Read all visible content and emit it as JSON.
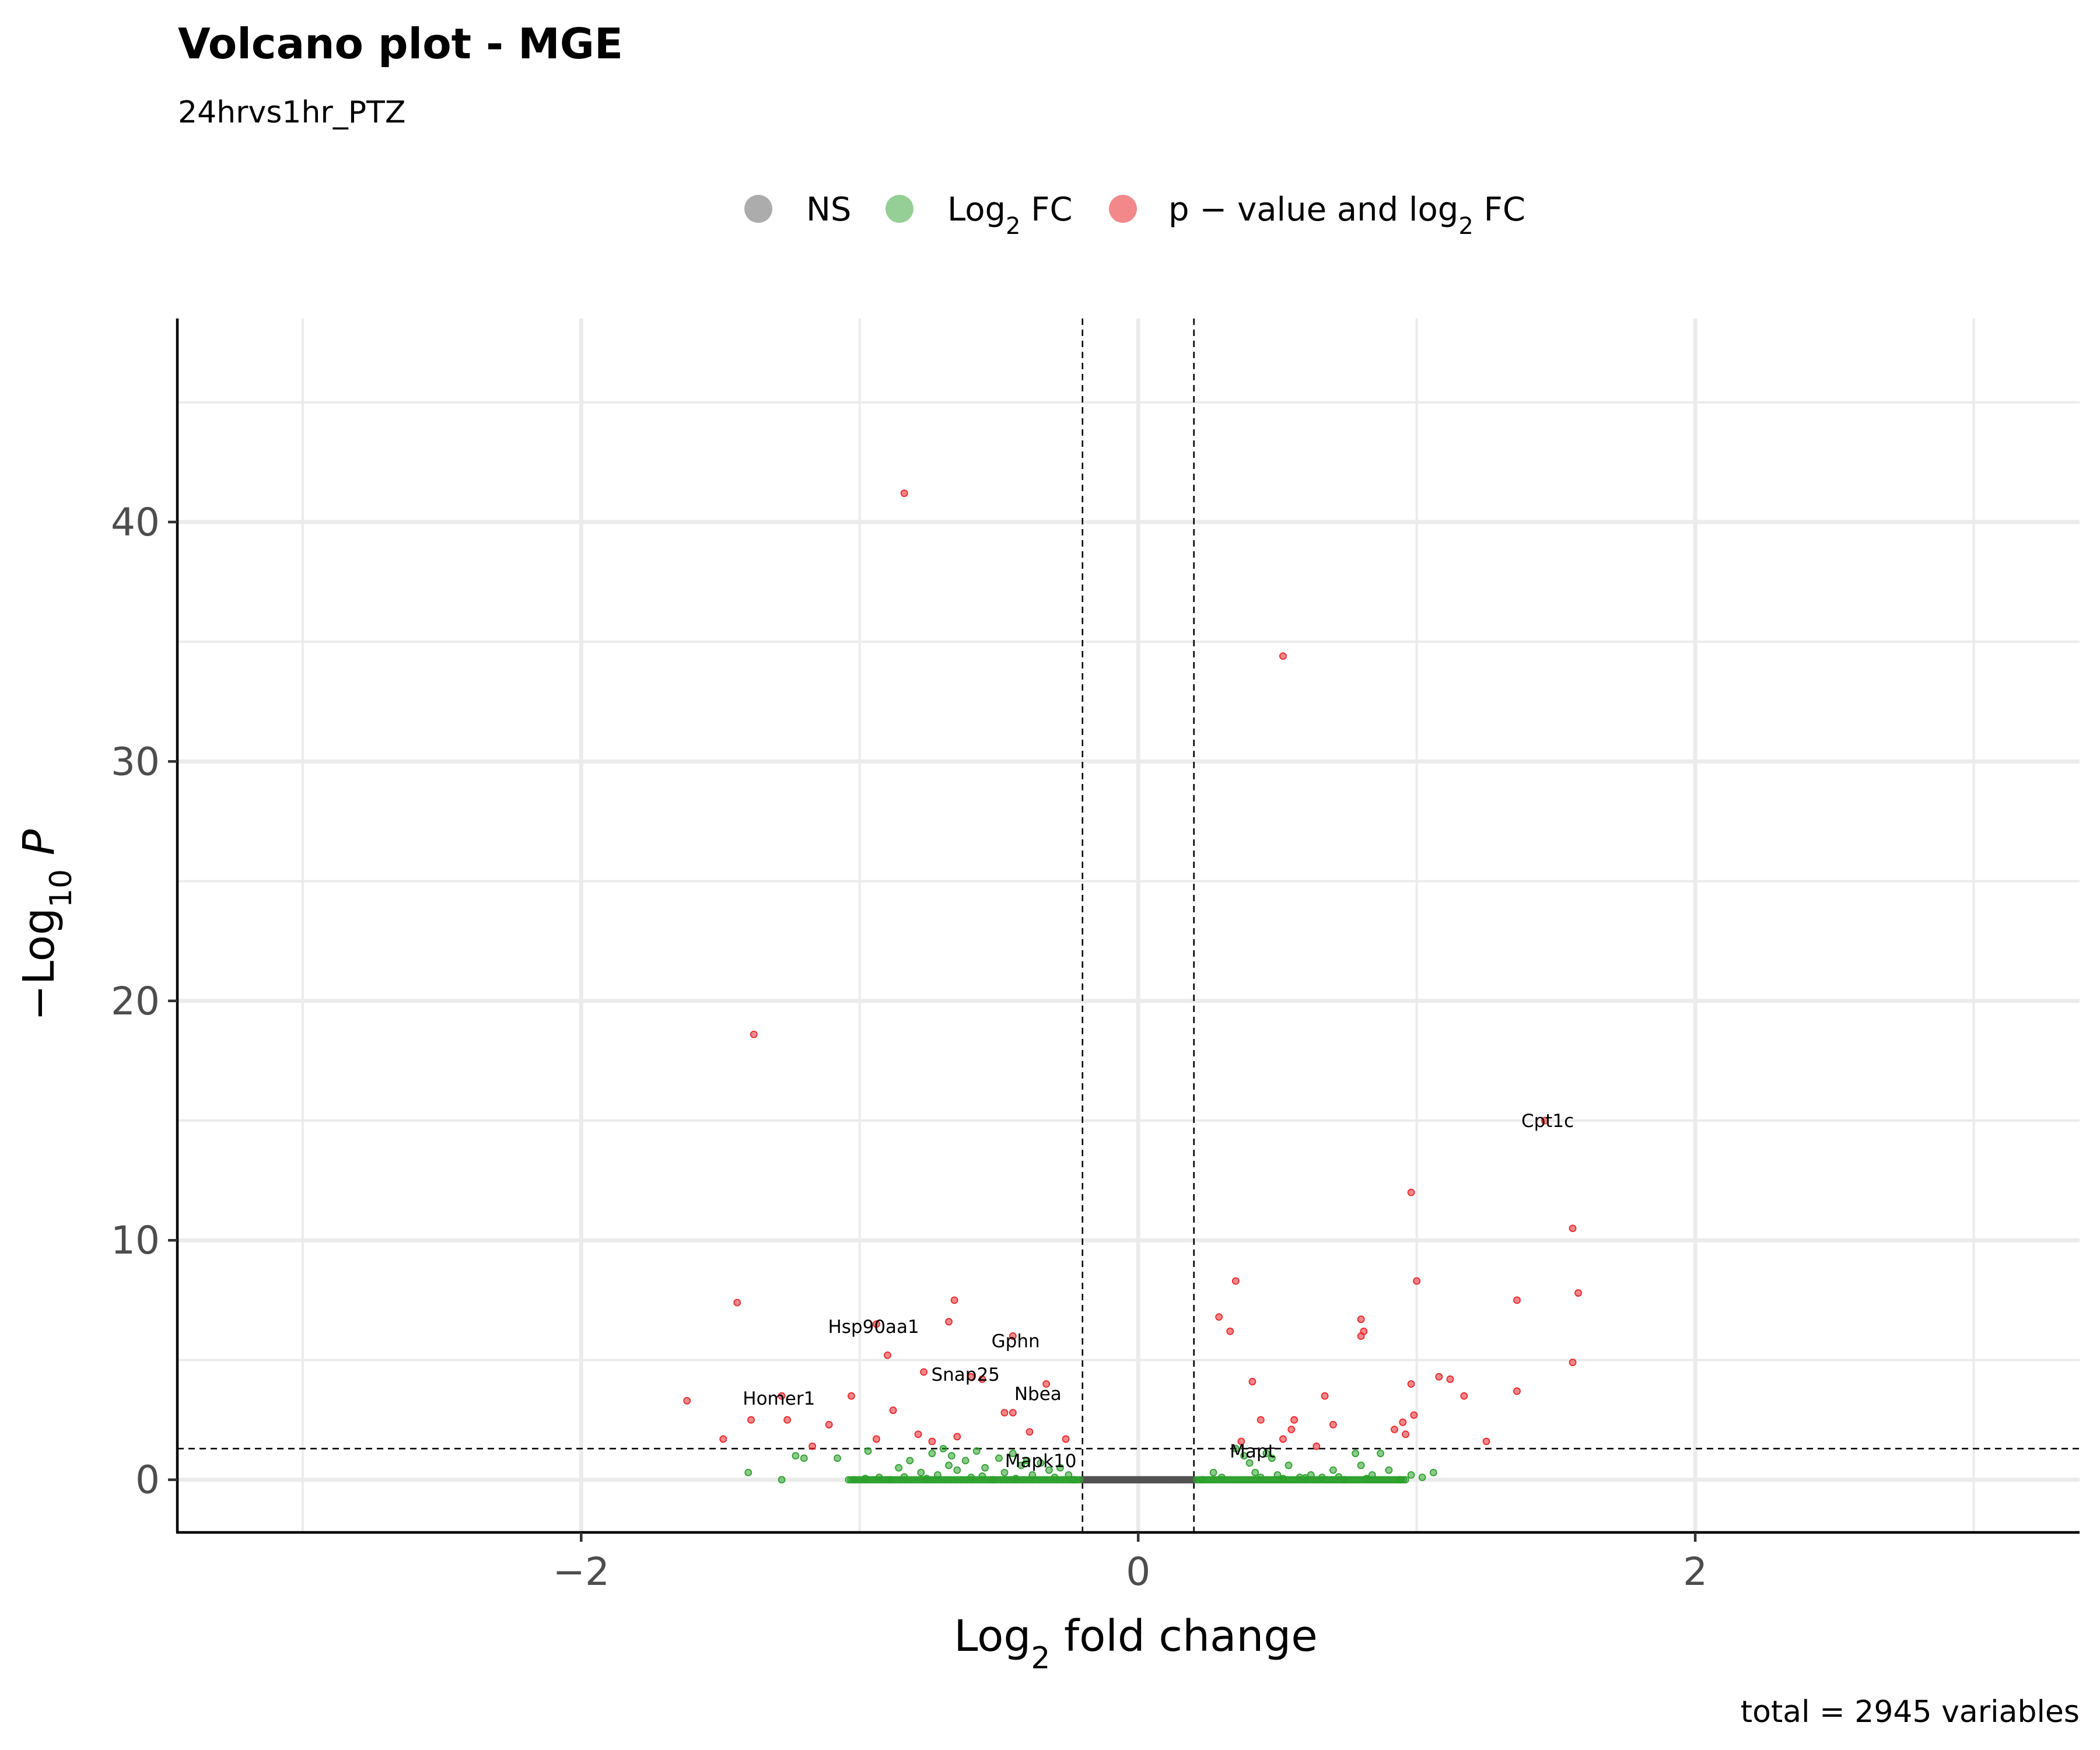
{
  "chart_data": {
    "type": "scatter",
    "title": "Volcano plot - MGE",
    "subtitle": "24hrvs1hr_PTZ",
    "caption": "total = 2945 variables",
    "xlabel": {
      "main": "Log",
      "sub": "2",
      "rest": " fold change"
    },
    "ylabel": {
      "minus": "−",
      "main": "Log",
      "sub": "10",
      "italic": " P"
    },
    "xlim": [
      -3.45,
      3.38
    ],
    "ylim": [
      -2.2,
      48.5
    ],
    "x_ticks": [
      -2,
      0,
      2
    ],
    "y_ticks": [
      0,
      10,
      20,
      30,
      40
    ],
    "grid": true,
    "legend_position": "top",
    "thresholds": {
      "fc_cutoff": 0.2,
      "p_cutoff_neglog10": 1.3
    },
    "legend": [
      {
        "key": "ns",
        "label": "NS",
        "color": "#808080"
      },
      {
        "key": "fc",
        "label_main": "Log",
        "label_sub": "2",
        "label_rest": " FC",
        "color": "#2ca02c"
      },
      {
        "key": "p_fc",
        "label_main": "p − value and log",
        "label_sub": "2",
        "label_rest": " FC",
        "color": "#e8262a"
      }
    ],
    "series": [
      {
        "key": "p_fc",
        "color": "#e8262a",
        "points": [
          [
            -0.84,
            41.2
          ],
          [
            0.52,
            34.4
          ],
          [
            -1.38,
            18.6
          ],
          [
            1.46,
            15.0
          ],
          [
            0.98,
            12.0
          ],
          [
            1.56,
            10.5
          ],
          [
            1.58,
            7.8
          ],
          [
            -1.44,
            7.4
          ],
          [
            -0.66,
            7.5
          ],
          [
            1.36,
            7.5
          ],
          [
            1.0,
            8.3
          ],
          [
            0.35,
            8.3
          ],
          [
            0.29,
            6.8
          ],
          [
            0.33,
            6.2
          ],
          [
            -0.68,
            6.6
          ],
          [
            -0.94,
            6.5
          ],
          [
            0.8,
            6.7
          ],
          [
            0.81,
            6.2
          ],
          [
            0.8,
            6.0
          ],
          [
            -0.45,
            6.0
          ],
          [
            -0.9,
            5.2
          ],
          [
            1.56,
            4.9
          ],
          [
            -0.77,
            4.5
          ],
          [
            -0.6,
            4.3
          ],
          [
            -0.56,
            4.2
          ],
          [
            1.08,
            4.3
          ],
          [
            1.12,
            4.2
          ],
          [
            -0.33,
            4.0
          ],
          [
            0.41,
            4.1
          ],
          [
            0.98,
            4.0
          ],
          [
            1.36,
            3.7
          ],
          [
            1.17,
            3.5
          ],
          [
            -1.62,
            3.3
          ],
          [
            -1.03,
            3.5
          ],
          [
            0.67,
            3.5
          ],
          [
            -1.28,
            3.5
          ],
          [
            -0.88,
            2.9
          ],
          [
            -0.48,
            2.8
          ],
          [
            -0.45,
            2.8
          ],
          [
            0.99,
            2.7
          ],
          [
            -1.39,
            2.5
          ],
          [
            -1.26,
            2.5
          ],
          [
            0.44,
            2.5
          ],
          [
            0.56,
            2.5
          ],
          [
            -1.11,
            2.3
          ],
          [
            0.95,
            2.4
          ],
          [
            0.7,
            2.3
          ],
          [
            0.55,
            2.1
          ],
          [
            0.92,
            2.1
          ],
          [
            0.96,
            1.9
          ],
          [
            -0.39,
            2.0
          ],
          [
            -0.79,
            1.9
          ],
          [
            -0.65,
            1.8
          ],
          [
            -0.26,
            1.7
          ],
          [
            -0.94,
            1.7
          ],
          [
            0.52,
            1.7
          ],
          [
            0.37,
            1.6
          ],
          [
            -1.49,
            1.7
          ],
          [
            1.25,
            1.6
          ],
          [
            -0.74,
            1.6
          ],
          [
            -1.17,
            1.4
          ],
          [
            0.64,
            1.4
          ]
        ]
      },
      {
        "key": "fc",
        "color": "#2ca02c",
        "points": [
          [
            -1.4,
            0.3
          ],
          [
            -1.28,
            0.0
          ],
          [
            -1.23,
            1.0
          ],
          [
            -1.2,
            0.9
          ],
          [
            -1.08,
            0.9
          ],
          [
            -1.02,
            0.0
          ],
          [
            -0.97,
            1.2
          ],
          [
            -0.93,
            0.1
          ],
          [
            -0.89,
            0.0
          ],
          [
            -0.86,
            0.5
          ],
          [
            -0.82,
            0.8
          ],
          [
            -0.78,
            0.3
          ],
          [
            -0.74,
            1.1
          ],
          [
            -0.72,
            0.2
          ],
          [
            -0.7,
            1.3
          ],
          [
            -0.68,
            0.6
          ],
          [
            -0.67,
            1.0
          ],
          [
            -0.65,
            0.4
          ],
          [
            -0.62,
            0.8
          ],
          [
            -0.6,
            0.1
          ],
          [
            -0.58,
            1.2
          ],
          [
            -0.55,
            0.5
          ],
          [
            -0.52,
            0.0
          ],
          [
            -0.5,
            0.9
          ],
          [
            -0.48,
            0.3
          ],
          [
            -0.45,
            1.1
          ],
          [
            -0.42,
            0.6
          ],
          [
            -0.4,
            0.8
          ],
          [
            -0.38,
            0.2
          ],
          [
            -0.35,
            0.7
          ],
          [
            -0.32,
            0.4
          ],
          [
            -0.3,
            0.1
          ],
          [
            -0.28,
            0.5
          ],
          [
            -0.25,
            0.2
          ],
          [
            -0.23,
            0.0
          ],
          [
            0.23,
            0.0
          ],
          [
            0.27,
            0.3
          ],
          [
            0.3,
            0.1
          ],
          [
            0.35,
            1.3
          ],
          [
            0.38,
            1.0
          ],
          [
            0.4,
            0.7
          ],
          [
            0.42,
            0.3
          ],
          [
            0.46,
            1.1
          ],
          [
            0.48,
            0.9
          ],
          [
            0.5,
            0.2
          ],
          [
            0.54,
            0.6
          ],
          [
            0.58,
            0.1
          ],
          [
            0.62,
            0.2
          ],
          [
            0.66,
            0.1
          ],
          [
            0.7,
            0.4
          ],
          [
            0.74,
            0.0
          ],
          [
            0.78,
            1.1
          ],
          [
            0.8,
            0.6
          ],
          [
            0.84,
            0.2
          ],
          [
            0.87,
            1.1
          ],
          [
            0.9,
            0.4
          ],
          [
            0.94,
            0.0
          ],
          [
            0.98,
            0.2
          ],
          [
            1.02,
            0.1
          ],
          [
            1.06,
            0.3
          ],
          [
            -0.98,
            0.05
          ],
          [
            -0.84,
            0.12
          ],
          [
            -0.76,
            0.05
          ],
          [
            -0.56,
            0.15
          ],
          [
            -0.44,
            0.05
          ],
          [
            0.44,
            0.1
          ],
          [
            0.52,
            0.05
          ],
          [
            0.6,
            0.08
          ],
          [
            0.72,
            0.12
          ],
          [
            0.82,
            0.05
          ]
        ],
        "band": {
          "x_ranges": [
            [
              -1.04,
              -0.21
            ],
            [
              0.21,
              0.96
            ]
          ],
          "y": 0.0,
          "count": 200
        }
      },
      {
        "key": "ns",
        "color": "#525252",
        "points": [],
        "band": {
          "x_ranges": [
            [
              -0.2,
              0.2
            ]
          ],
          "y": 0.0,
          "count": 120
        }
      }
    ],
    "labels": [
      {
        "text": "Hsp90aa1",
        "x": -0.95,
        "y": 6.4
      },
      {
        "text": "Gphn",
        "x": -0.44,
        "y": 5.8
      },
      {
        "text": "Snap25",
        "x": -0.62,
        "y": 4.4
      },
      {
        "text": "Nbea",
        "x": -0.36,
        "y": 3.6
      },
      {
        "text": "Homer1",
        "x": -1.29,
        "y": 3.4
      },
      {
        "text": "Mapk10",
        "x": -0.35,
        "y": 0.8
      },
      {
        "text": "Mapt",
        "x": 0.41,
        "y": 1.2
      },
      {
        "text": "Cpt1c",
        "x": 1.47,
        "y": 15.0
      }
    ]
  }
}
